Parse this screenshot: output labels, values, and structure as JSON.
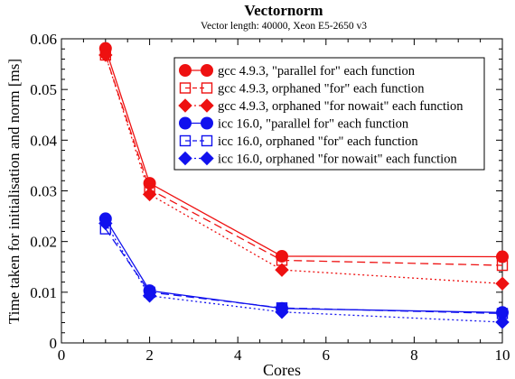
{
  "chart_data": {
    "type": "line",
    "title": "Vectornorm",
    "subtitle": "Vector length: 40000, Xeon E5-2650 v3",
    "xlabel": "Cores",
    "ylabel": "Time taken for initialisation and norm [ms]",
    "xlim": [
      0,
      10
    ],
    "ylim": [
      0,
      0.06
    ],
    "xticks": [
      0,
      2,
      4,
      6,
      8,
      10
    ],
    "xtick_labels": [
      "0",
      "2",
      "4",
      "6",
      "8",
      "10"
    ],
    "yticks": [
      0,
      0.01,
      0.02,
      0.03,
      0.04,
      0.05,
      0.06
    ],
    "ytick_labels": [
      "0",
      "0.01",
      "0.02",
      "0.03",
      "0.04",
      "0.05",
      "0.06"
    ],
    "grid": false,
    "legend_position": "top-right",
    "x": [
      1,
      2,
      5,
      10
    ],
    "series": [
      {
        "name": "gcc 4.9.3, \"parallel for\" each function",
        "color": "#ee1111",
        "line": "solid",
        "marker": "circle-filled",
        "values": [
          0.0581,
          0.0315,
          0.0171,
          0.017
        ]
      },
      {
        "name": "gcc 4.9.3, orphaned \"for\" each function",
        "color": "#ee1111",
        "line": "dashed",
        "marker": "square-open",
        "values": [
          0.0568,
          0.0303,
          0.0163,
          0.0153
        ]
      },
      {
        "name": "gcc 4.9.3, orphaned \"for nowait\" each function",
        "color": "#ee1111",
        "line": "dotted",
        "marker": "diamond-filled",
        "values": [
          0.0568,
          0.0293,
          0.0144,
          0.0117
        ]
      },
      {
        "name": "icc 16.0, \"parallel for\" each function",
        "color": "#1111ee",
        "line": "solid",
        "marker": "circle-filled",
        "values": [
          0.0245,
          0.0103,
          0.0068,
          0.006
        ]
      },
      {
        "name": "icc 16.0, orphaned \"for\" each function",
        "color": "#1111ee",
        "line": "dashed",
        "marker": "square-open",
        "values": [
          0.0225,
          0.01,
          0.0069,
          0.0058
        ]
      },
      {
        "name": "icc 16.0, orphaned \"for nowait\" each function",
        "color": "#1111ee",
        "line": "dotted",
        "marker": "diamond-filled",
        "values": [
          0.0236,
          0.0093,
          0.0061,
          0.0041
        ]
      }
    ]
  }
}
